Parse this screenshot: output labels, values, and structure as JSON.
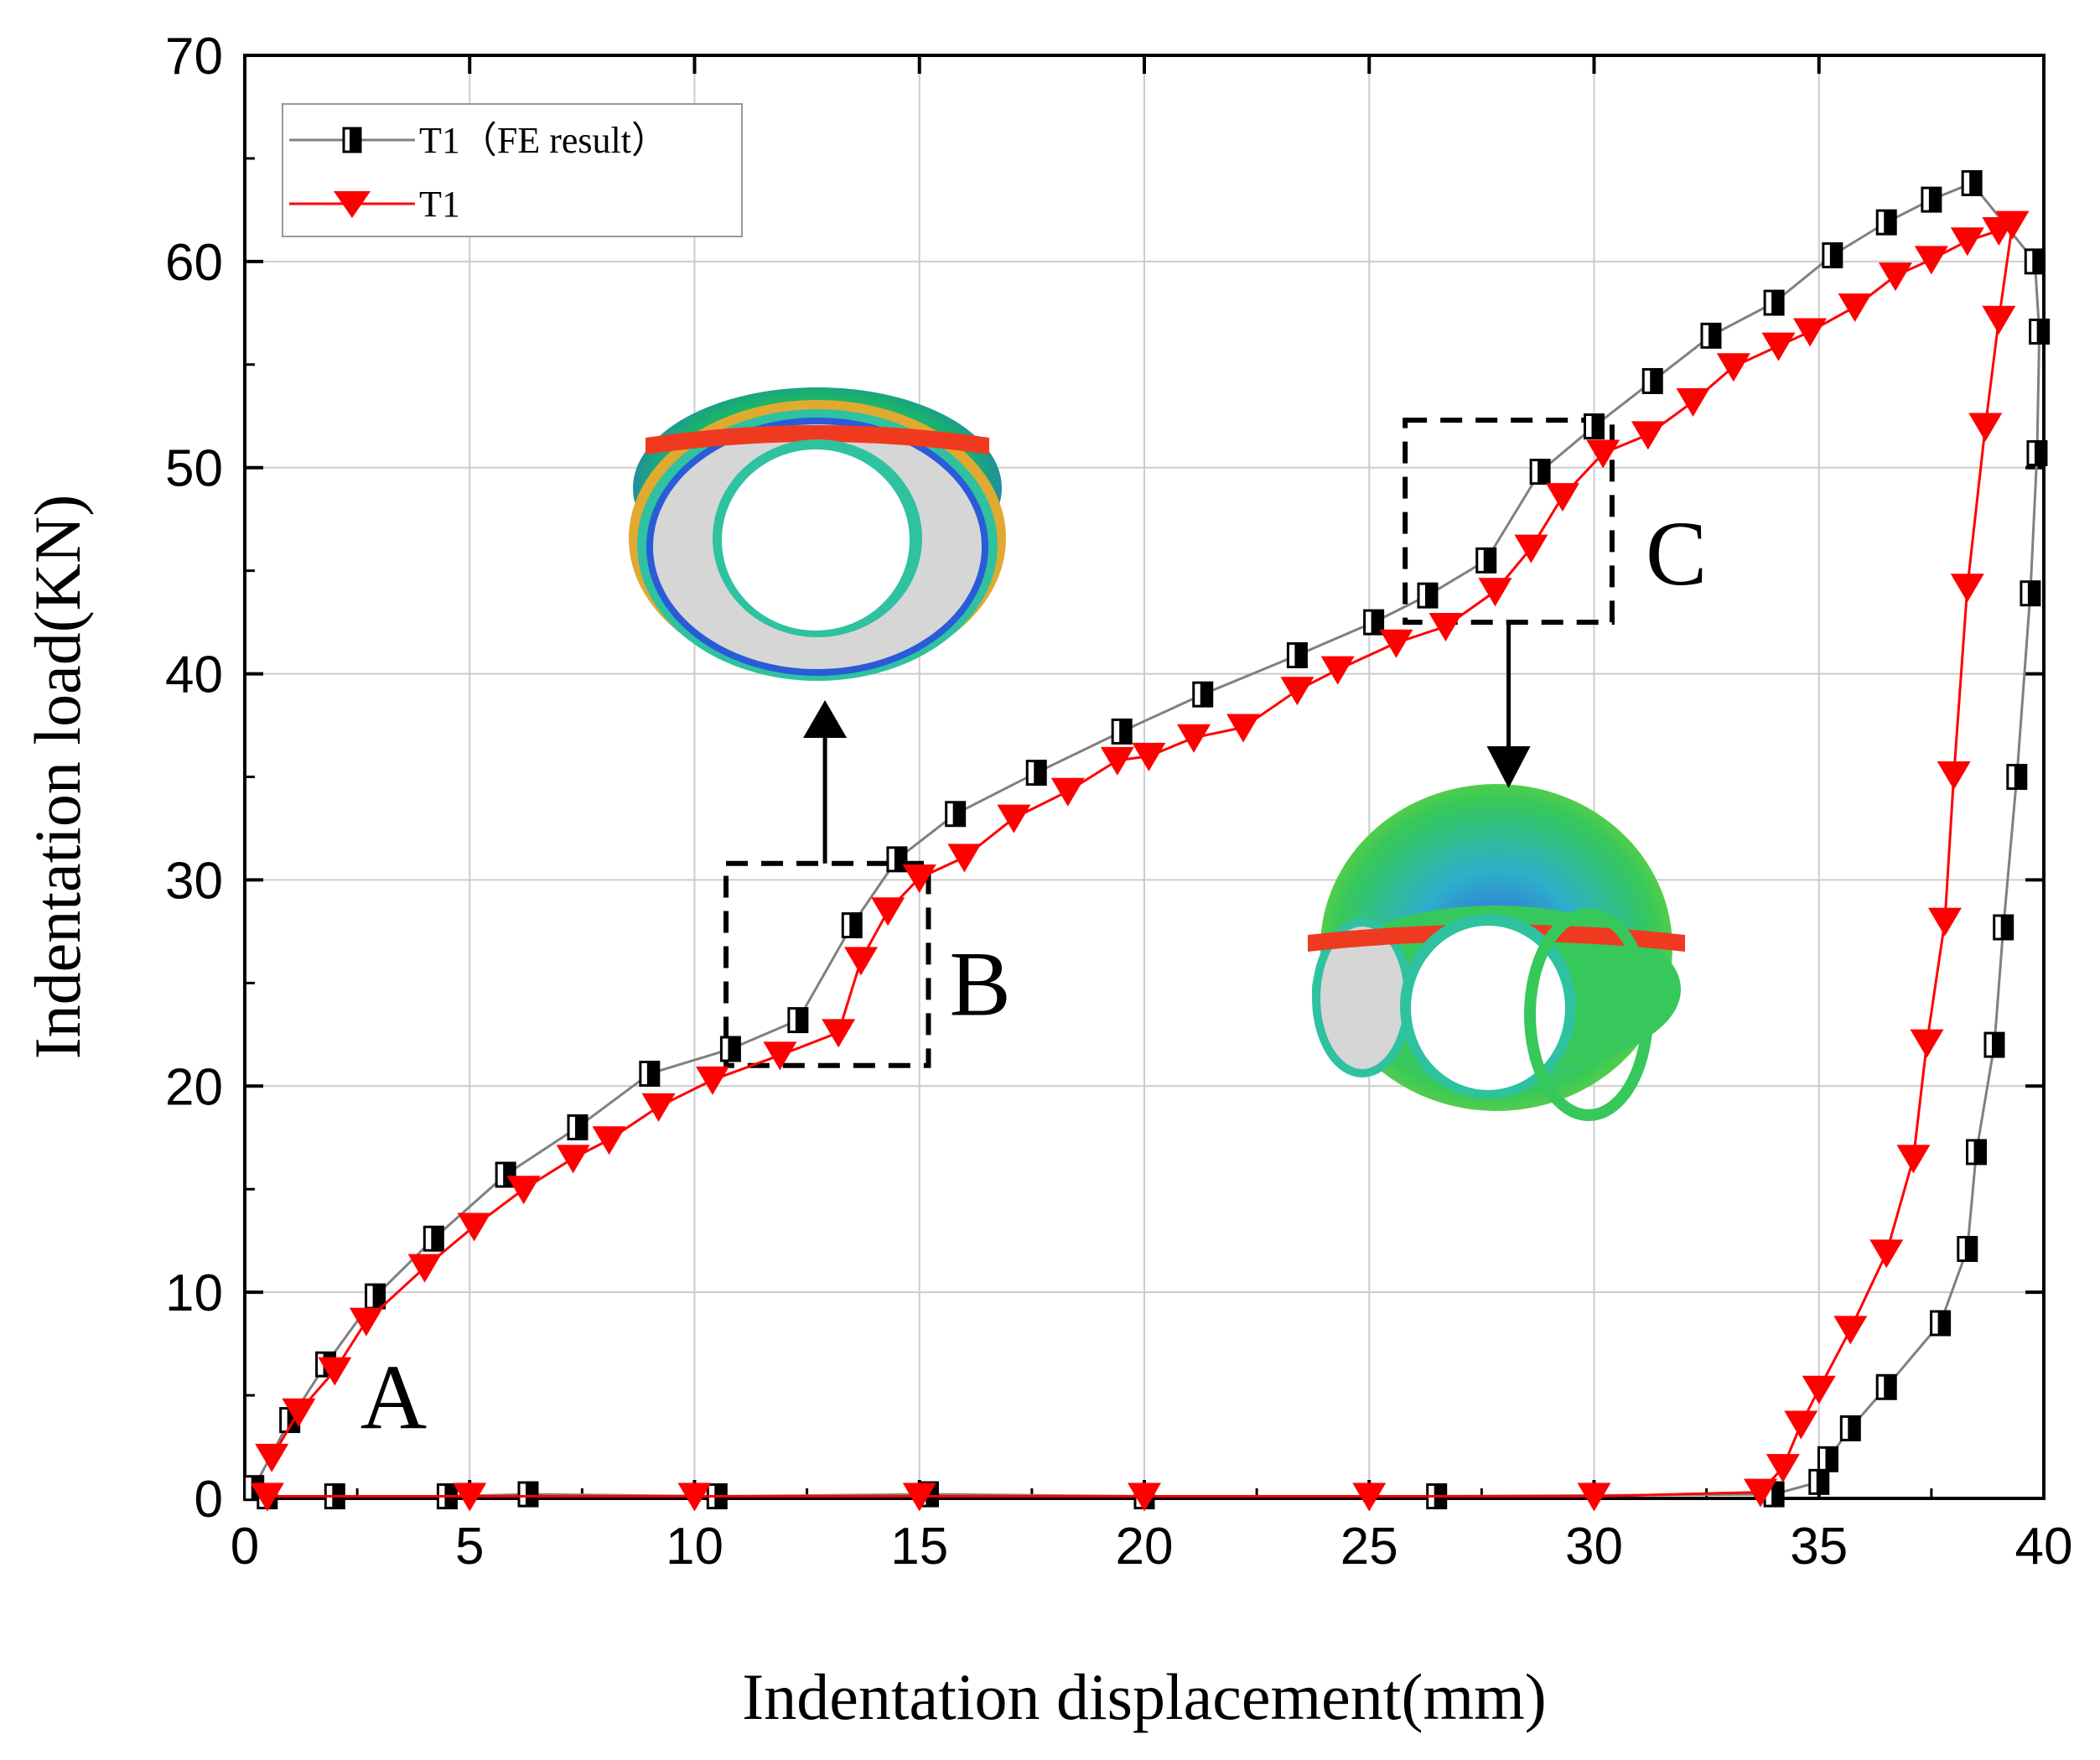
{
  "chart_data": {
    "type": "line",
    "title": "",
    "xlabel": "Indentation displacement(mm)",
    "ylabel": "Indentation load(KN)",
    "xlim": [
      0,
      40
    ],
    "ylim": [
      0,
      70
    ],
    "xticks": [
      0,
      5,
      10,
      15,
      20,
      25,
      30,
      35,
      40
    ],
    "yticks": [
      0,
      10,
      20,
      30,
      40,
      50,
      60,
      70
    ],
    "grid": true,
    "legend_position": "top-left",
    "series": [
      {
        "name": "T1（FE result）",
        "color": "#808080",
        "marker": "half-filled-square",
        "x": [
          0.2,
          1.0,
          1.8,
          2.9,
          4.2,
          5.8,
          7.4,
          9.0,
          10.8,
          12.3,
          13.5,
          14.5,
          15.8,
          17.6,
          19.5,
          21.3,
          23.4,
          25.1,
          26.3,
          27.6,
          28.8,
          30.0,
          31.3,
          32.6,
          34.0,
          35.3,
          36.5,
          37.5,
          38.4,
          39.8,
          39.9,
          39.85,
          39.7,
          39.4,
          39.1,
          38.9,
          38.5,
          38.3,
          37.7,
          36.5,
          35.7,
          35.2,
          35.0,
          34.0,
          26.5,
          20.0,
          15.2,
          10.5,
          6.3,
          4.5,
          2.0,
          0.5
        ],
        "y": [
          0.5,
          3.8,
          6.5,
          9.8,
          12.6,
          15.7,
          18.0,
          20.6,
          21.8,
          23.2,
          27.8,
          31.0,
          33.2,
          35.2,
          37.2,
          39.0,
          40.9,
          42.5,
          43.8,
          45.5,
          49.8,
          52.0,
          54.2,
          56.4,
          58.0,
          60.3,
          61.9,
          63.0,
          63.8,
          60.0,
          56.6,
          50.7,
          43.9,
          35.0,
          27.7,
          22.0,
          16.8,
          12.1,
          8.5,
          5.4,
          3.4,
          1.9,
          0.8,
          0.2,
          0.1,
          0.1,
          0.2,
          0.1,
          0.2,
          0.1,
          0.1,
          0.1
        ]
      },
      {
        "name": "T1",
        "color": "#ff0000",
        "marker": "triangle-down",
        "x": [
          0.6,
          1.2,
          2.0,
          2.7,
          4.0,
          5.1,
          6.2,
          7.3,
          8.1,
          9.2,
          10.4,
          11.9,
          13.2,
          13.7,
          14.3,
          15.0,
          16.0,
          17.1,
          18.3,
          19.4,
          20.1,
          21.1,
          22.2,
          23.4,
          24.3,
          25.6,
          26.7,
          27.8,
          28.6,
          29.3,
          30.2,
          31.2,
          32.2,
          33.1,
          34.1,
          34.8,
          35.8,
          36.7,
          37.5,
          38.3,
          39.0,
          39.3,
          39.0,
          38.7,
          38.3,
          38.0,
          37.8,
          37.4,
          37.1,
          36.5,
          35.7,
          35.0,
          34.6,
          34.2,
          33.7,
          30,
          25,
          20,
          15,
          10,
          5,
          0.5
        ],
        "y": [
          2.0,
          4.2,
          6.2,
          8.6,
          11.2,
          13.2,
          15.0,
          16.5,
          17.4,
          19.0,
          20.3,
          21.5,
          22.6,
          26.1,
          28.5,
          30.1,
          31.1,
          33.0,
          34.3,
          35.8,
          36.0,
          36.9,
          37.4,
          39.2,
          40.2,
          41.5,
          42.3,
          44.0,
          46.1,
          48.6,
          50.7,
          51.6,
          53.2,
          54.9,
          55.9,
          56.6,
          57.8,
          59.3,
          60.1,
          61.0,
          61.5,
          61.8,
          57.2,
          52.0,
          44.2,
          35.1,
          28.0,
          22.1,
          16.5,
          11.9,
          8.2,
          5.3,
          3.6,
          1.5,
          0.3,
          0.1,
          0.1,
          0.1,
          0.1,
          0.1,
          0.1,
          0.1
        ]
      }
    ],
    "annotations": [
      {
        "label": "A",
        "x": 3.5,
        "y": 3
      },
      {
        "label": "B",
        "box_x": [
          10.7,
          15.2
        ],
        "box_y": [
          21,
          30.8
        ]
      },
      {
        "label": "C",
        "box_x": [
          25.8,
          30.4
        ],
        "box_y": [
          42.5,
          52.3
        ]
      }
    ]
  }
}
